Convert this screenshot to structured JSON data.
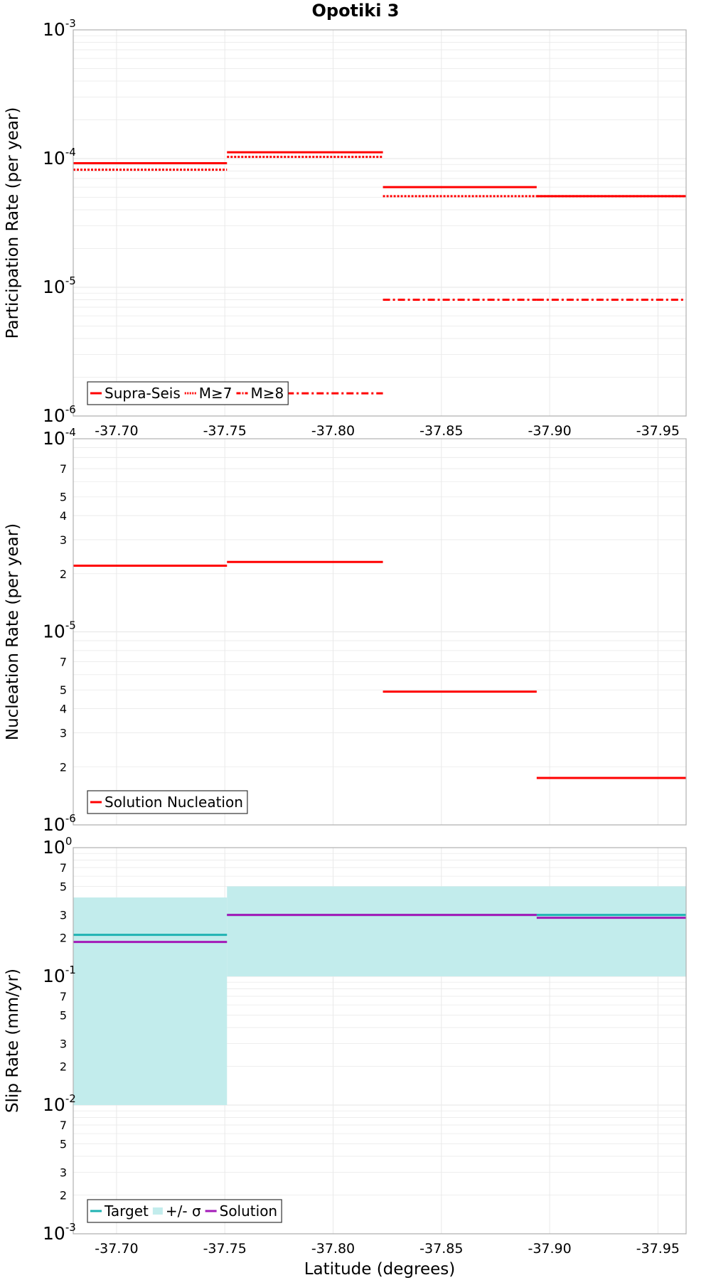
{
  "title": "Opotiki 3",
  "xlabel": "Latitude (degrees)",
  "colors": {
    "red": "#ff0000",
    "teal": "#1fb3b3",
    "band": "#c2ecec",
    "purple": "#a31ab8",
    "grid": "#e9e9e9",
    "frame": "#b0b0b0"
  },
  "chart_data": [
    {
      "type": "line",
      "name": "participation",
      "ylabel": "Participation Rate (per year)",
      "yscale": "log",
      "ylim": [
        1e-06,
        0.001
      ],
      "xlim": [
        -37.68,
        -37.963
      ],
      "x_ticks": [
        -37.7,
        -37.75,
        -37.8,
        -37.85,
        -37.9,
        -37.95
      ],
      "x_tick_labels": [
        "-37.70",
        "-37.75",
        "-37.80",
        "-37.85",
        "-37.90",
        "-37.95"
      ],
      "y_ticks": [
        {
          "value": 0.001,
          "base": "10",
          "exp": "-3"
        },
        {
          "value": 0.0001,
          "base": "10",
          "exp": "-4"
        },
        {
          "value": 1e-05,
          "base": "10",
          "exp": "-5"
        },
        {
          "value": 1e-06,
          "base": "10",
          "exp": "-6"
        }
      ],
      "y_minor_labels": [],
      "legend": {
        "position": "bottom-left",
        "entries": [
          {
            "label": "Supra-Seis",
            "style": "solid",
            "color": "#ff0000"
          },
          {
            "label": "M≥7",
            "style": "dotted",
            "color": "#ff0000"
          },
          {
            "label": "M≥8",
            "style": "dashdot",
            "color": "#ff0000"
          }
        ]
      },
      "series": [
        {
          "style": "solid",
          "color": "#ff0000",
          "segments": [
            {
              "x0": -37.68,
              "x1": -37.751,
              "y": 9.2e-05
            },
            {
              "x0": -37.751,
              "x1": -37.823,
              "y": 0.000112
            },
            {
              "x0": -37.823,
              "x1": -37.894,
              "y": 6e-05
            },
            {
              "x0": -37.894,
              "x1": -37.963,
              "y": 5.1e-05
            }
          ]
        },
        {
          "style": "dotted",
          "color": "#ff0000",
          "segments": [
            {
              "x0": -37.68,
              "x1": -37.751,
              "y": 8.2e-05
            },
            {
              "x0": -37.751,
              "x1": -37.823,
              "y": 0.000103
            },
            {
              "x0": -37.823,
              "x1": -37.894,
              "y": 5.1e-05
            },
            {
              "x0": -37.894,
              "x1": -37.963,
              "y": 5.1e-05
            }
          ]
        },
        {
          "style": "dashdot",
          "color": "#ff0000",
          "segments": [
            {
              "x0": -37.751,
              "x1": -37.823,
              "y": 1.5e-06
            },
            {
              "x0": -37.823,
              "x1": -37.894,
              "y": 8e-06
            },
            {
              "x0": -37.894,
              "x1": -37.963,
              "y": 8e-06
            }
          ]
        }
      ]
    },
    {
      "type": "line",
      "name": "nucleation",
      "ylabel": "Nucleation Rate (per year)",
      "yscale": "log",
      "ylim": [
        1e-06,
        0.0001
      ],
      "xlim": [
        -37.68,
        -37.963
      ],
      "x_ticks": [
        -37.7,
        -37.75,
        -37.8,
        -37.85,
        -37.9,
        -37.95
      ],
      "y_ticks": [
        {
          "value": 0.0001,
          "base": "10",
          "exp": "-4"
        },
        {
          "value": 1e-05,
          "base": "10",
          "exp": "-5"
        },
        {
          "value": 1e-06,
          "base": "10",
          "exp": "-6"
        }
      ],
      "y_minor_labels": [
        {
          "value": 7e-05,
          "label": "7"
        },
        {
          "value": 5e-05,
          "label": "5"
        },
        {
          "value": 4e-05,
          "label": "4"
        },
        {
          "value": 3e-05,
          "label": "3"
        },
        {
          "value": 2e-05,
          "label": "2"
        },
        {
          "value": 7e-06,
          "label": "7"
        },
        {
          "value": 5e-06,
          "label": "5"
        },
        {
          "value": 4e-06,
          "label": "4"
        },
        {
          "value": 3e-06,
          "label": "3"
        },
        {
          "value": 2e-06,
          "label": "2"
        }
      ],
      "legend": {
        "position": "bottom-left",
        "entries": [
          {
            "label": "Solution Nucleation",
            "style": "solid",
            "color": "#ff0000"
          }
        ]
      },
      "series": [
        {
          "style": "solid",
          "color": "#ff0000",
          "segments": [
            {
              "x0": -37.68,
              "x1": -37.751,
              "y": 2.2e-05
            },
            {
              "x0": -37.751,
              "x1": -37.823,
              "y": 2.3e-05
            },
            {
              "x0": -37.823,
              "x1": -37.894,
              "y": 4.9e-06
            },
            {
              "x0": -37.894,
              "x1": -37.963,
              "y": 1.75e-06
            }
          ]
        }
      ]
    },
    {
      "type": "line",
      "name": "slip",
      "ylabel": "Slip Rate (mm/yr)",
      "yscale": "log",
      "ylim": [
        0.001,
        1
      ],
      "xlim": [
        -37.68,
        -37.963
      ],
      "x_ticks": [
        -37.7,
        -37.75,
        -37.8,
        -37.85,
        -37.9,
        -37.95
      ],
      "x_tick_labels": [
        "-37.70",
        "-37.75",
        "-37.80",
        "-37.85",
        "-37.90",
        "-37.95"
      ],
      "y_ticks": [
        {
          "value": 1,
          "base": "10",
          "exp": "0"
        },
        {
          "value": 0.1,
          "base": "10",
          "exp": "-1"
        },
        {
          "value": 0.01,
          "base": "10",
          "exp": "-2"
        },
        {
          "value": 0.001,
          "base": "10",
          "exp": "-3"
        }
      ],
      "y_minor_labels": [
        {
          "value": 0.7,
          "label": "7"
        },
        {
          "value": 0.5,
          "label": "5"
        },
        {
          "value": 0.3,
          "label": "3"
        },
        {
          "value": 0.2,
          "label": "2"
        },
        {
          "value": 0.07,
          "label": "7"
        },
        {
          "value": 0.05,
          "label": "5"
        },
        {
          "value": 0.03,
          "label": "3"
        },
        {
          "value": 0.02,
          "label": "2"
        },
        {
          "value": 0.007,
          "label": "7"
        },
        {
          "value": 0.005,
          "label": "5"
        },
        {
          "value": 0.003,
          "label": "3"
        },
        {
          "value": 0.002,
          "label": "2"
        }
      ],
      "legend": {
        "position": "bottom-left",
        "entries": [
          {
            "label": "Target",
            "style": "solid",
            "color": "#1fb3b3"
          },
          {
            "label": "+/- σ",
            "style": "band",
            "color": "#c2ecec"
          },
          {
            "label": "Solution",
            "style": "solid",
            "color": "#a31ab8"
          }
        ]
      },
      "bands": [
        {
          "color": "#c2ecec",
          "segments": [
            {
              "x0": -37.68,
              "x1": -37.751,
              "y0": 0.01,
              "y1": 0.41
            },
            {
              "x0": -37.751,
              "x1": -37.963,
              "y0": 0.1,
              "y1": 0.5
            }
          ]
        }
      ],
      "series": [
        {
          "style": "solid",
          "color": "#1fb3b3",
          "segments": [
            {
              "x0": -37.68,
              "x1": -37.751,
              "y": 0.21
            },
            {
              "x0": -37.751,
              "x1": -37.894,
              "y": 0.3
            },
            {
              "x0": -37.894,
              "x1": -37.963,
              "y": 0.3
            }
          ]
        },
        {
          "style": "solid",
          "color": "#a31ab8",
          "segments": [
            {
              "x0": -37.68,
              "x1": -37.751,
              "y": 0.185
            },
            {
              "x0": -37.751,
              "x1": -37.894,
              "y": 0.3
            },
            {
              "x0": -37.894,
              "x1": -37.963,
              "y": 0.285
            }
          ]
        }
      ]
    }
  ]
}
